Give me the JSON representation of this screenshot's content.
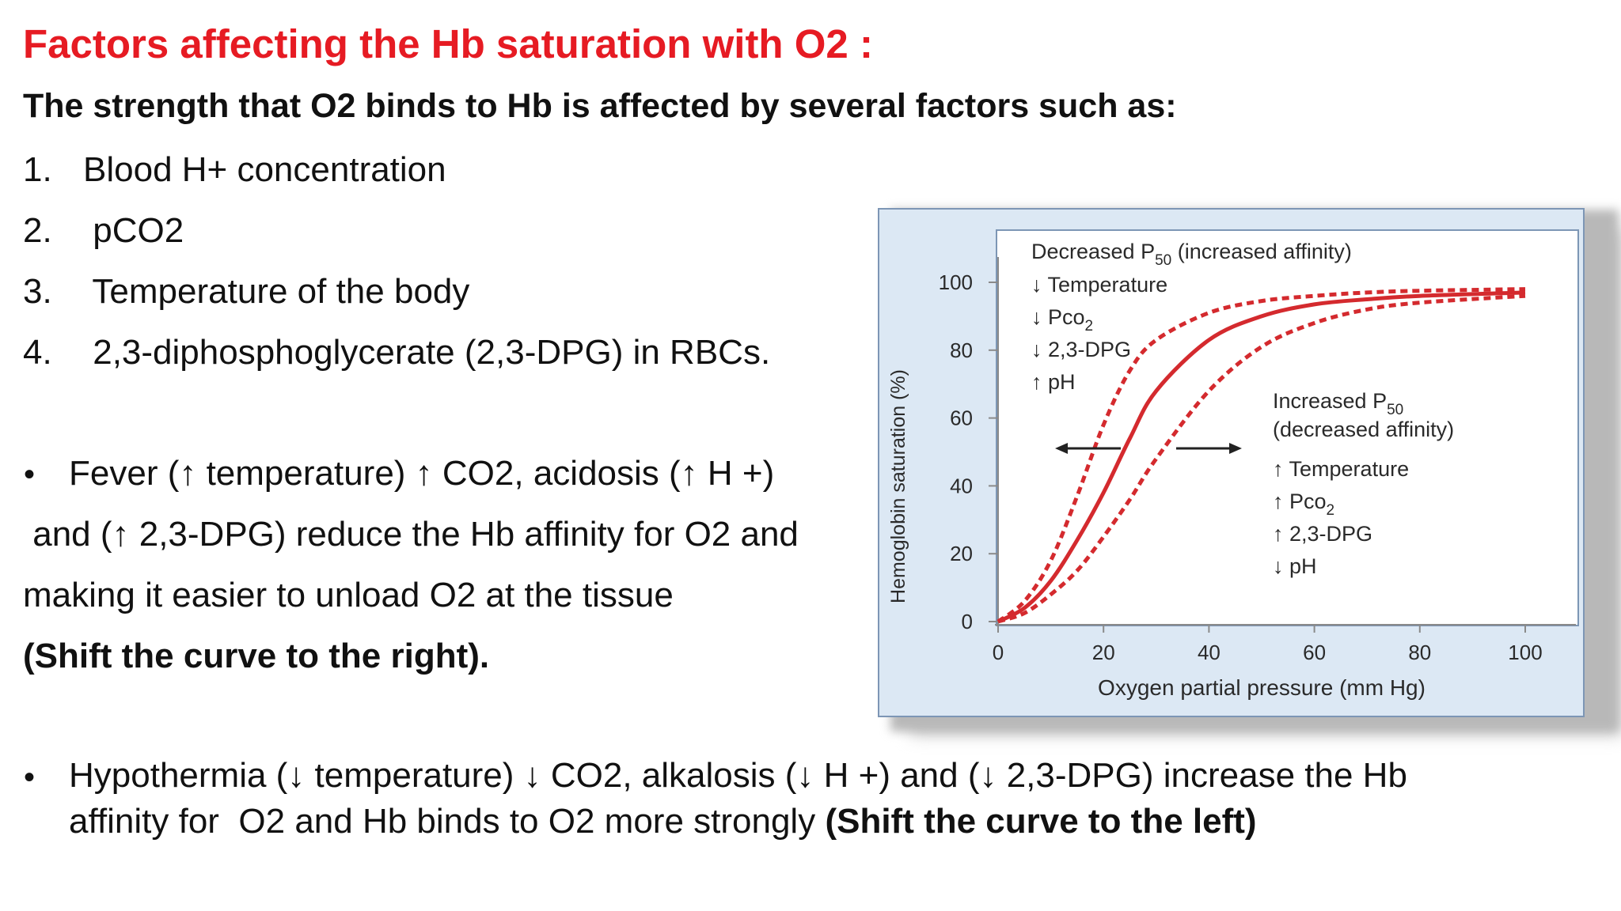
{
  "slide": {
    "title": "Factors affecting the Hb saturation with O2 :",
    "subtitle": "The strength that O2 binds to Hb is affected by several factors such as:",
    "factors": [
      {
        "num": "1.",
        "text": "Blood H+ concentration"
      },
      {
        "num": "2.",
        "text": " pCO2"
      },
      {
        "num": "3.",
        "text": " Temperature of the body"
      },
      {
        "num": "4.",
        "text": " 2,3-diphosphoglycerate (2,3-DPG) in RBCs."
      }
    ],
    "bullet1": {
      "line1": "Fever (↑ temperature) ↑ CO2, acidosis (↑ H +)",
      "line2": " and (↑ 2,3-DPG) reduce the Hb affinity for O2 and",
      "line3": "making it easier to unload O2 at the tissue",
      "line4_bold": "(Shift the curve to the right)."
    },
    "bullet2": {
      "line1": "Hypothermia (↓ temperature) ↓ CO2, alkalosis  (↓ H +) and (↓ 2,3-DPG) increase the Hb",
      "line2": "affinity for  O2 and Hb binds to O2 more strongly ",
      "line2_bold": "(Shift the curve to the left)"
    },
    "bullet_symbol": "•",
    "colors": {
      "title": "#e61b23",
      "curve": "#d42a2e",
      "figure_bg": "#dce8f4",
      "plot_bg": "#ffffff"
    }
  },
  "chart_data": {
    "type": "line",
    "xlabel": "Oxygen partial pressure (mm Hg)",
    "ylabel": "Hemoglobin saturation (%)",
    "xlim": [
      0,
      100
    ],
    "ylim": [
      0,
      100
    ],
    "xticks": [
      "0",
      "20",
      "40",
      "60",
      "80",
      "100"
    ],
    "yticks": [
      "0",
      "20",
      "40",
      "60",
      "80",
      "100"
    ],
    "series": [
      {
        "style": "dashed",
        "x": [
          0,
          5,
          10,
          15,
          20,
          25,
          30,
          40,
          50,
          60,
          70,
          80,
          100
        ],
        "y": [
          0,
          6,
          18,
          37,
          58,
          74,
          83,
          91,
          94.5,
          96,
          97,
          97.5,
          98
        ]
      },
      {
        "style": "solid",
        "x": [
          0,
          5,
          10,
          15,
          20,
          25,
          30,
          40,
          50,
          60,
          70,
          80,
          100
        ],
        "y": [
          0,
          4,
          12,
          24,
          38,
          54,
          68,
          83,
          90,
          93.5,
          95,
          96,
          97
        ]
      },
      {
        "style": "dashed",
        "x": [
          0,
          5,
          10,
          15,
          20,
          25,
          30,
          40,
          50,
          60,
          70,
          80,
          100
        ],
        "y": [
          0,
          2.5,
          8,
          15,
          25,
          36,
          48,
          68,
          81,
          88,
          92,
          94,
          96
        ]
      }
    ],
    "annotations": {
      "left": {
        "heading_pre": "Decreased P",
        "heading_sub": "50",
        "heading_post": " (increased affinity)",
        "lines": [
          {
            "arrow": "↓",
            "text": "Temperature",
            "sub": ""
          },
          {
            "arrow": "↓",
            "text": "Pco",
            "sub": "2"
          },
          {
            "arrow": "↓",
            "text": "2,3-DPG",
            "sub": ""
          },
          {
            "arrow": "↑",
            "text": "pH",
            "sub": ""
          }
        ]
      },
      "right": {
        "heading_pre": "Increased P",
        "heading_sub": "50",
        "heading_line2": "(decreased affinity)",
        "lines": [
          {
            "arrow": "↑",
            "text": "Temperature",
            "sub": ""
          },
          {
            "arrow": "↑",
            "text": "Pco",
            "sub": "2"
          },
          {
            "arrow": "↑",
            "text": "2,3-DPG",
            "sub": ""
          },
          {
            "arrow": "↓",
            "text": "pH",
            "sub": ""
          }
        ]
      }
    }
  }
}
